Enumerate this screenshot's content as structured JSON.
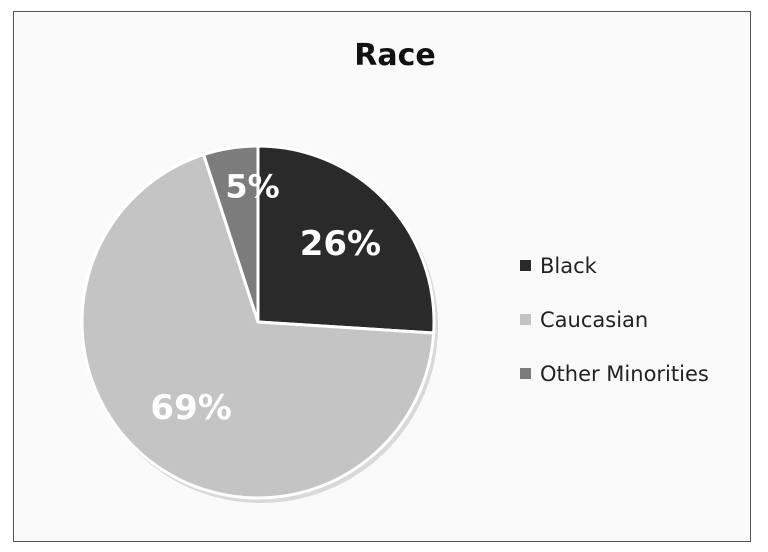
{
  "chart_data": {
    "type": "pie",
    "title": "Race",
    "categories": [
      "Black",
      "Caucasian",
      "Other Minorities"
    ],
    "values": [
      26,
      69,
      5
    ],
    "labels": [
      "26%",
      "69%",
      "5%"
    ],
    "colors": [
      "#2a2a2a",
      "#c4c4c4",
      "#7c7c7c"
    ],
    "label_colors": [
      "#ffffff",
      "#ffffff",
      "#ffffff"
    ],
    "legend_position": "right",
    "start_angle_deg": 0,
    "direction": "clockwise"
  }
}
